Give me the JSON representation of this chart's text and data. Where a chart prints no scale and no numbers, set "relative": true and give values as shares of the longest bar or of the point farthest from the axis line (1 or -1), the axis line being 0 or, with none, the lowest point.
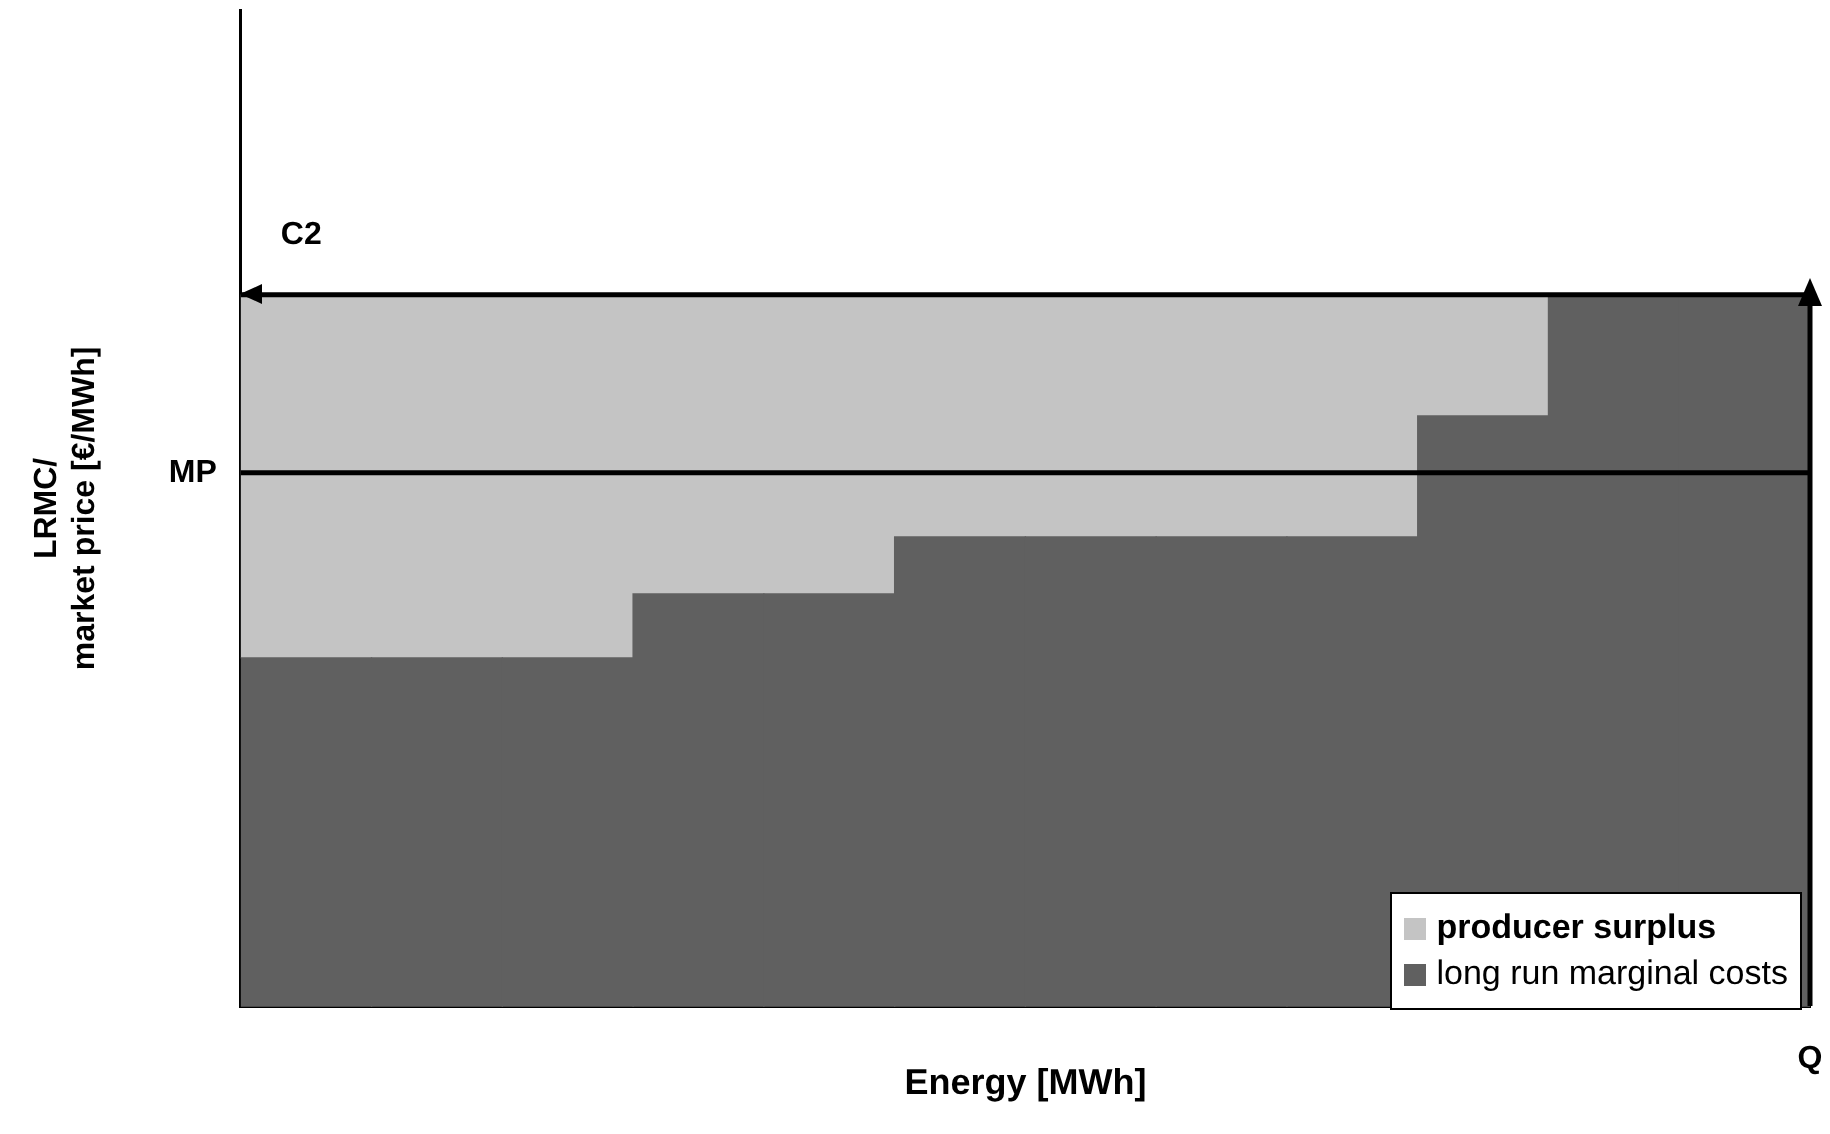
{
  "chart_data": {
    "type": "bar",
    "stacked": true,
    "relative": true,
    "xlabel": "Energy [MWh]",
    "ylabel": "LRMC/\nmarket price [€/MWh]",
    "categories": [
      null,
      null,
      null,
      null,
      null,
      null,
      null,
      null,
      null,
      null,
      null,
      null
    ],
    "series": [
      {
        "name": "long run marginal costs",
        "color": "#606060",
        "values": [
          0.49,
          0.49,
          0.49,
          0.58,
          0.58,
          0.66,
          0.66,
          0.66,
          0.66,
          0.83,
          1,
          1
        ]
      },
      {
        "name": "producer surplus",
        "color": "#c4c4c4",
        "values": [
          0.51,
          0.51,
          0.51,
          0.42,
          0.42,
          0.34,
          0.34,
          0.34,
          0.34,
          0.17,
          0,
          0
        ]
      }
    ],
    "ref_lines": [
      {
        "axis": "y",
        "value": 0.75,
        "label": "MP"
      },
      {
        "axis": "y",
        "value": 1,
        "label": "C2"
      }
    ],
    "annotations": [
      "Q"
    ],
    "legend": "bottom right"
  }
}
